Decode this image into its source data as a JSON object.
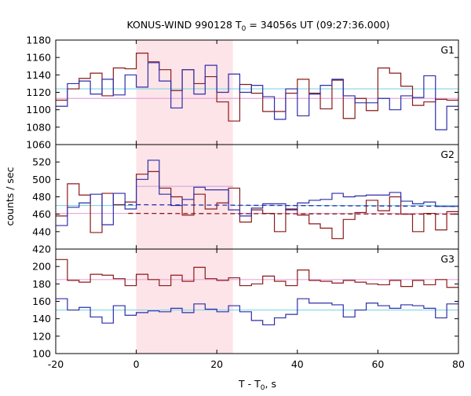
{
  "chart_data": {
    "type": "line",
    "title": "KONUS-WIND 990128 T",
    "title_sub": "0",
    "title_rest": " = 34056s UT (09:27:36.000)",
    "xlabel": "T - T",
    "xlabel_sub": "0",
    "xlabel_rest": ", s",
    "ylabel": "counts / sec",
    "xlim": [
      -20,
      80
    ],
    "x_ticks": [
      -20,
      0,
      20,
      40,
      60,
      80
    ],
    "highlight_interval": [
      0,
      24
    ],
    "colors": {
      "red_series": "#8b1a1a",
      "blue_series": "#2e2eab",
      "cyan_fit": "#7fd8e6",
      "pink_fit": "#e8a8dc",
      "highlight": "#fde4e8"
    },
    "panels": [
      {
        "label": "G1",
        "ylim": [
          1060,
          1180
        ],
        "y_ticks": [
          1060,
          1080,
          1100,
          1120,
          1140,
          1160,
          1180
        ],
        "bin_edges": [
          -20,
          -17.1,
          -14.2,
          -11.4,
          -8.5,
          -5.7,
          -2.8,
          0,
          2.9,
          5.7,
          8.6,
          11.4,
          14.3,
          17.1,
          20,
          22.9,
          25.7,
          28.6,
          31.4,
          34.3,
          37.1,
          40,
          42.9,
          45.7,
          48.6,
          51.4,
          54.3,
          57.1,
          60,
          62.9,
          65.7,
          68.6,
          71.4,
          74.3,
          77.1,
          80
        ],
        "series": [
          {
            "color_key": "red_series",
            "values": [
              1111,
              1124,
              1136,
              1142,
              1116,
              1148,
              1147,
              1165,
              1155,
              1146,
              1122,
              1146,
              1130,
              1138,
              1109,
              1087,
              1129,
              1119,
              1098,
              1098,
              1119,
              1135,
              1119,
              1101,
              1134,
              1090,
              1113,
              1099,
              1148,
              1142,
              1127,
              1105,
              1109,
              1112,
              1111
            ]
          },
          {
            "color_key": "blue_series",
            "values": [
              1104,
              1130,
              1133,
              1118,
              1135,
              1117,
              1140,
              1126,
              1154,
              1133,
              1102,
              1146,
              1118,
              1151,
              1120,
              1141,
              1120,
              1128,
              1115,
              1089,
              1124,
              1093,
              1118,
              1128,
              1135,
              1116,
              1108,
              1108,
              1113,
              1100,
              1116,
              1114,
              1139,
              1077,
              1104
            ]
          }
        ],
        "fits": [
          {
            "color_key": "cyan_fit",
            "segments": [
              {
                "x": [
                  -20,
                  80
                ],
                "y": [
                  1124,
                  1124
                ]
              }
            ]
          },
          {
            "color_key": "pink_fit",
            "segments": [
              {
                "x": [
                  -20,
                  80
                ],
                "y": [
                  1113,
                  1113
                ]
              }
            ]
          }
        ]
      },
      {
        "label": "G2",
        "ylim": [
          420,
          540
        ],
        "y_ticks": [
          420,
          440,
          460,
          480,
          500,
          520
        ],
        "bin_edges": [
          -20,
          -17.1,
          -14.2,
          -11.4,
          -8.5,
          -5.7,
          -2.8,
          0,
          2.9,
          5.7,
          8.6,
          11.4,
          14.3,
          17.1,
          20,
          22.9,
          25.7,
          28.6,
          31.4,
          34.3,
          37.1,
          40,
          42.9,
          45.7,
          48.6,
          51.4,
          54.3,
          57.1,
          60,
          62.9,
          65.7,
          68.6,
          71.4,
          74.3,
          77.1,
          80
        ],
        "series": [
          {
            "color_key": "red_series",
            "values": [
              458,
              495,
              482,
              439,
              484,
              471,
              474,
              506,
              509,
              490,
              480,
              459,
              483,
              466,
              473,
              490,
              451,
              465,
              461,
              440,
              466,
              459,
              449,
              444,
              432,
              454,
              462,
              476,
              464,
              480,
              460,
              440,
              461,
              442,
              463
            ]
          },
          {
            "color_key": "blue_series",
            "values": [
              447,
              468,
              473,
              483,
              448,
              484,
              466,
              500,
              522,
              483,
              470,
              477,
              491,
              488,
              488,
              465,
              458,
              467,
              472,
              472,
              465,
              473,
              476,
              477,
              484,
              480,
              481,
              482,
              482,
              485,
              475,
              472,
              474,
              469,
              469
            ]
          }
        ],
        "fits": [
          {
            "color_key": "cyan_fit",
            "segments": [
              {
                "x": [
                  -20,
                  0
                ],
                "y": [
                  470,
                  470
                ]
              },
              {
                "x": [
                  0,
                  24
                ],
                "y": [
                  492,
                  492
                ]
              },
              {
                "x": [
                  24,
                  80
                ],
                "y": [
                  470,
                  470
                ]
              }
            ]
          },
          {
            "color_key": "pink_fit",
            "segments": [
              {
                "x": [
                  -20,
                  0
                ],
                "y": [
                  461,
                  461
                ]
              },
              {
                "x": [
                  0,
                  24
                ],
                "y": [
                  492,
                  492
                ]
              },
              {
                "x": [
                  24,
                  80
                ],
                "y": [
                  461,
                  461
                ]
              }
            ]
          }
        ],
        "dashed_lines": [
          {
            "color_key": "blue_series",
            "x": [
              -2,
              80
            ],
            "y": [
              471,
              469
            ]
          },
          {
            "color_key": "red_series",
            "x": [
              -2,
              80
            ],
            "y": [
              461,
              460
            ]
          }
        ]
      },
      {
        "label": "G3",
        "ylim": [
          100,
          220
        ],
        "y_ticks": [
          100,
          120,
          140,
          160,
          180,
          200
        ],
        "bin_edges": [
          -20,
          -17.1,
          -14.2,
          -11.4,
          -8.5,
          -5.7,
          -2.8,
          0,
          2.9,
          5.7,
          8.6,
          11.4,
          14.3,
          17.1,
          20,
          22.9,
          25.7,
          28.6,
          31.4,
          34.3,
          37.1,
          40,
          42.9,
          45.7,
          48.6,
          51.4,
          54.3,
          57.1,
          60,
          62.9,
          65.7,
          68.6,
          71.4,
          74.3,
          77.1,
          80
        ],
        "series": [
          {
            "color_key": "red_series",
            "values": [
              208,
              184,
              182,
              191,
              190,
              186,
              178,
              191,
              185,
              178,
              190,
              183,
              199,
              186,
              184,
              187,
              178,
              180,
              189,
              183,
              178,
              196,
              184,
              183,
              181,
              184,
              182,
              180,
              179,
              184,
              177,
              184,
              179,
              185,
              176
            ]
          },
          {
            "color_key": "blue_series",
            "values": [
              163,
              150,
              153,
              142,
              135,
              155,
              144,
              147,
              149,
              148,
              152,
              147,
              157,
              151,
              148,
              155,
              148,
              138,
              133,
              141,
              145,
              163,
              158,
              158,
              156,
              142,
              150,
              158,
              155,
              152,
              156,
              155,
              152,
              141,
              157
            ]
          }
        ],
        "fits": [
          {
            "color_key": "pink_fit",
            "segments": [
              {
                "x": [
                  -20,
                  80
                ],
                "y": [
                  185,
                  185
                ]
              }
            ]
          },
          {
            "color_key": "cyan_fit",
            "segments": [
              {
                "x": [
                  -20,
                  80
                ],
                "y": [
                  150,
                  150
                ]
              }
            ]
          }
        ]
      }
    ]
  }
}
